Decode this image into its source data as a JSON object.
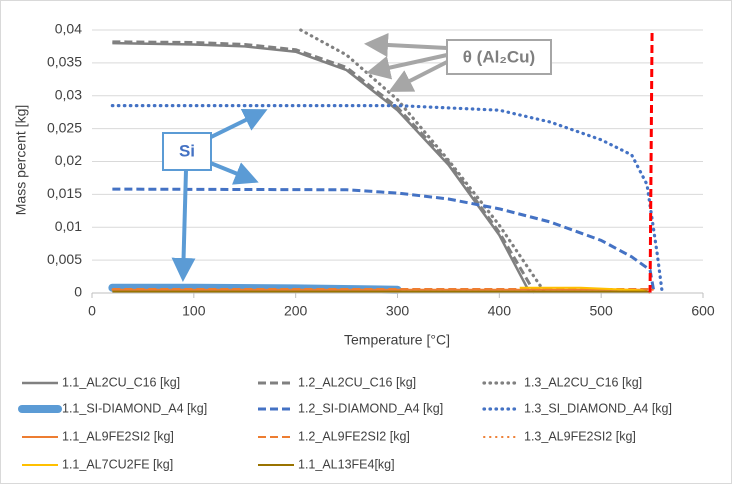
{
  "chart_data": {
    "type": "line",
    "x_label": "Temperature [°C]",
    "y_label": "Mass percent [kg]",
    "xlim": [
      0,
      600
    ],
    "xticks": [
      0,
      100,
      200,
      300,
      400,
      500,
      600
    ],
    "ylim": [
      0,
      0.04
    ],
    "yticks": [
      0,
      {
        "value": 0.005,
        "label": "0,005"
      },
      {
        "value": 0.01,
        "label": "0,01"
      },
      {
        "value": 0.015,
        "label": "0,015"
      },
      {
        "value": 0.02,
        "label": "0,02"
      },
      {
        "value": 0.025,
        "label": "0,025"
      },
      {
        "value": 0.03,
        "label": "0,03"
      },
      {
        "value": 0.035,
        "label": "0,035"
      },
      {
        "value": 0.04,
        "label": "0,04"
      }
    ],
    "grid": true,
    "legend": "bottom",
    "annotations": [
      {
        "text": "θ (Al₂Cu)"
      },
      {
        "text": "Si"
      }
    ],
    "series": [
      {
        "name": "1.1_AL2CU_C16 [kg]",
        "color": "#808080",
        "style": "solid",
        "x": [
          20,
          100,
          150,
          200,
          250,
          300,
          350,
          400,
          430
        ],
        "values": [
          0.038,
          0.0378,
          0.0375,
          0.0367,
          0.0339,
          0.0278,
          0.0195,
          0.0088,
          0
        ]
      },
      {
        "name": "1.2_AL2CU_C16 [kg]",
        "color": "#808080",
        "style": "dashed",
        "x": [
          20,
          100,
          150,
          200,
          250,
          300,
          350,
          400,
          435
        ],
        "values": [
          0.0382,
          0.0381,
          0.0378,
          0.037,
          0.0343,
          0.0282,
          0.0199,
          0.0092,
          0
        ]
      },
      {
        "name": "1.3_AL2CU_C16 [kg]",
        "color": "#808080",
        "style": "dotted",
        "x": [
          205,
          250,
          300,
          350,
          400,
          445
        ],
        "values": [
          0.04,
          0.0362,
          0.0294,
          0.0202,
          0.0103,
          0
        ]
      },
      {
        "name": "1.1_SI-DIAMOND_A4 [kg]",
        "color": "#5b9bd5",
        "style": "thick",
        "x": [
          20,
          100,
          200,
          300
        ],
        "values": [
          0.0008,
          0.0008,
          0.0007,
          0.0005
        ]
      },
      {
        "name": "1.2_SI-DIAMOND_A4 [kg]",
        "color": "#4472c4",
        "style": "dashed",
        "x": [
          20,
          250,
          300,
          350,
          400,
          450,
          500,
          530,
          548,
          552
        ],
        "values": [
          0.0158,
          0.0157,
          0.0152,
          0.0143,
          0.0128,
          0.0108,
          0.008,
          0.0055,
          0.0035,
          0
        ]
      },
      {
        "name": "1.3_SI_DIAMOND_A4 [kg]",
        "color": "#4472c4",
        "style": "dotted",
        "x": [
          20,
          300,
          400,
          450,
          500,
          530,
          545,
          555,
          560
        ],
        "values": [
          0.0285,
          0.0285,
          0.0278,
          0.026,
          0.0233,
          0.021,
          0.0165,
          0.006,
          0
        ]
      },
      {
        "name": "1.1_AL9FE2SI2 [kg]",
        "color": "#ed7d31",
        "style": "solid",
        "x": [
          20,
          300,
          545
        ],
        "values": [
          0.0005,
          0.0005,
          0.0005
        ]
      },
      {
        "name": "1.2_AL9FE2SI2 [kg]",
        "color": "#ed7d31",
        "style": "dashed",
        "x": [
          20,
          300,
          550
        ],
        "values": [
          0.0006,
          0.0006,
          0.0006
        ]
      },
      {
        "name": "1.3_AL9FE2SI2 [kg]",
        "color": "#ed7d31",
        "style": "dotted",
        "x": [
          20,
          300,
          555
        ],
        "values": [
          0.0005,
          0.0005,
          0.0005
        ]
      },
      {
        "name": "1.1_AL7CU2FE [kg]",
        "color": "#ffc000",
        "style": "solid",
        "x": [
          420,
          480,
          540,
          548
        ],
        "values": [
          0.0008,
          0.0008,
          0.0004,
          0
        ]
      },
      {
        "name": "1.1_AL13FE4[kg]",
        "color": "#997300",
        "style": "solid",
        "x": [
          20,
          548
        ],
        "values": [
          0.0002,
          0.0002
        ]
      },
      {
        "color": "#ff0000",
        "style": "dashed",
        "x": [
          548,
          550
        ],
        "values": [
          0,
          0.04
        ]
      }
    ]
  }
}
